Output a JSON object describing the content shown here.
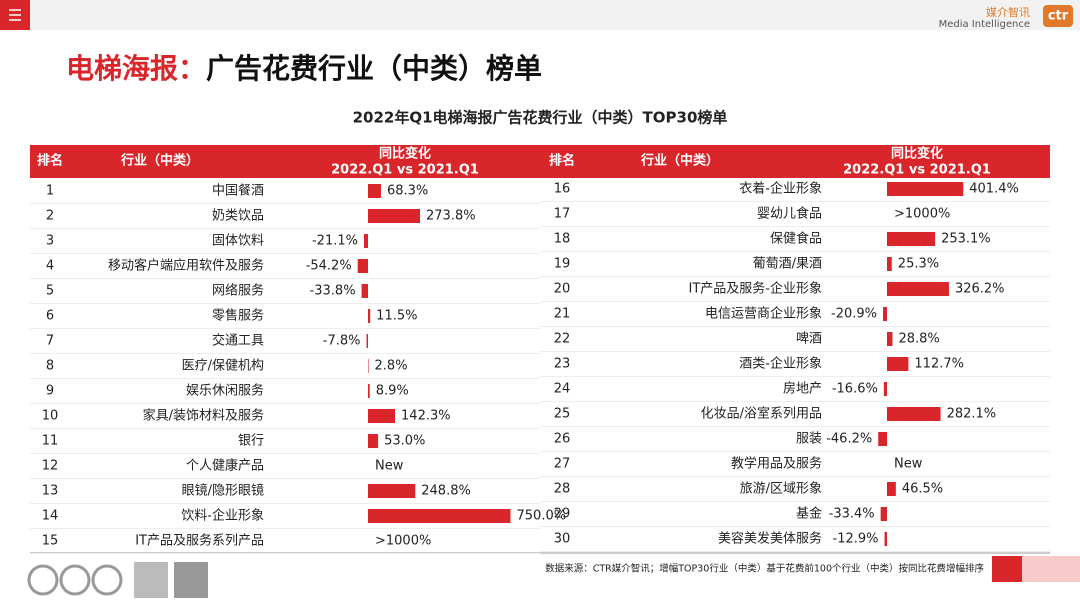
{
  "header": {
    "title_accent": "电梯海报：",
    "title_rest": "广告花费行业（中类）榜单",
    "logo_cn": "媒介智讯",
    "logo_en": "Media Intelligence",
    "logo_mark": "ctr"
  },
  "table": {
    "title": "2022年Q1电梯海报广告花费行业（中类）TOP30榜单",
    "columns": {
      "rank": "排名",
      "industry": "行业（中类）",
      "change": "同比变化",
      "change_period": "2022.Q1 vs 2021.Q1"
    },
    "left": [
      {
        "rank": 1,
        "industry": "中国餐酒",
        "value": 68.3,
        "value_label": "68.3%"
      },
      {
        "rank": 2,
        "industry": "奶类饮品",
        "value": 273.8,
        "value_label": "273.8%"
      },
      {
        "rank": 3,
        "industry": "固体饮料",
        "value": -21.1,
        "value_label": "-21.1%"
      },
      {
        "rank": 4,
        "industry": "移动客户端应用软件及服务",
        "value": -54.2,
        "value_label": "-54.2%"
      },
      {
        "rank": 5,
        "industry": "网络服务",
        "value": -33.8,
        "value_label": "-33.8%"
      },
      {
        "rank": 6,
        "industry": "零售服务",
        "value": 11.5,
        "value_label": "11.5%"
      },
      {
        "rank": 7,
        "industry": "交通工具",
        "value": -7.8,
        "value_label": "-7.8%"
      },
      {
        "rank": 8,
        "industry": "医疗/保健机构",
        "value": 2.8,
        "value_label": "2.8%"
      },
      {
        "rank": 9,
        "industry": "娱乐休闲服务",
        "value": 8.9,
        "value_label": "8.9%"
      },
      {
        "rank": 10,
        "industry": "家具/装饰材料及服务",
        "value": 142.3,
        "value_label": "142.3%"
      },
      {
        "rank": 11,
        "industry": "银行",
        "value": 53.0,
        "value_label": "53.0%"
      },
      {
        "rank": 12,
        "industry": "个人健康产品",
        "value": null,
        "value_label": "New"
      },
      {
        "rank": 13,
        "industry": "眼镜/隐形眼镜",
        "value": 248.8,
        "value_label": "248.8%"
      },
      {
        "rank": 14,
        "industry": "饮料-企业形象",
        "value": 750.0,
        "value_label": "750.0%"
      },
      {
        "rank": 15,
        "industry": "IT产品及服务系列产品",
        "value": null,
        "value_label": ">1000%"
      }
    ],
    "right": [
      {
        "rank": 16,
        "industry": "衣着-企业形象",
        "value": 401.4,
        "value_label": "401.4%"
      },
      {
        "rank": 17,
        "industry": "婴幼儿食品",
        "value": null,
        "value_label": ">1000%"
      },
      {
        "rank": 18,
        "industry": "保健食品",
        "value": 253.1,
        "value_label": "253.1%"
      },
      {
        "rank": 19,
        "industry": "葡萄酒/果酒",
        "value": 25.3,
        "value_label": "25.3%"
      },
      {
        "rank": 20,
        "industry": "IT产品及服务-企业形象",
        "value": 326.2,
        "value_label": "326.2%"
      },
      {
        "rank": 21,
        "industry": "电信运营商企业形象",
        "value": -20.9,
        "value_label": "-20.9%"
      },
      {
        "rank": 22,
        "industry": "啤酒",
        "value": 28.8,
        "value_label": "28.8%"
      },
      {
        "rank": 23,
        "industry": "酒类-企业形象",
        "value": 112.7,
        "value_label": "112.7%"
      },
      {
        "rank": 24,
        "industry": "房地产",
        "value": -16.6,
        "value_label": "-16.6%"
      },
      {
        "rank": 25,
        "industry": "化妆品/浴室系列用品",
        "value": 282.1,
        "value_label": "282.1%"
      },
      {
        "rank": 26,
        "industry": "服装",
        "value": -46.2,
        "value_label": "-46.2%"
      },
      {
        "rank": 27,
        "industry": "教学用品及服务",
        "value": null,
        "value_label": "New"
      },
      {
        "rank": 28,
        "industry": "旅游/区域形象",
        "value": 46.5,
        "value_label": "46.5%"
      },
      {
        "rank": 29,
        "industry": "基金",
        "value": -33.4,
        "value_label": "-33.4%"
      },
      {
        "rank": 30,
        "industry": "美容美发美体服务",
        "value": -12.9,
        "value_label": "-12.9%"
      }
    ]
  },
  "footer": {
    "source": "数据来源：CTR媒介智讯；增幅TOP30行业（中类）基于花费前100个行业（中类）按同比花费增幅排序"
  }
}
